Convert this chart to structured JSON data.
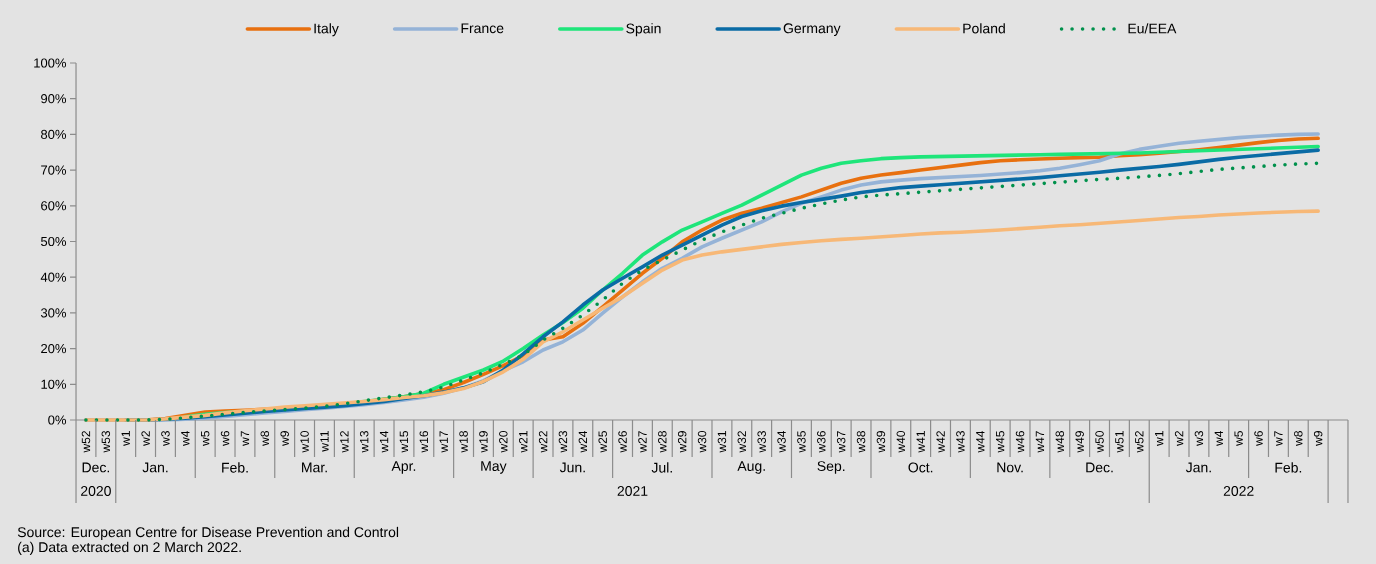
{
  "chart_data": {
    "type": "line",
    "categories": [
      "w52",
      "w53",
      "w1",
      "w2",
      "w3",
      "w4",
      "w5",
      "w6",
      "w7",
      "w8",
      "w9",
      "w10",
      "w11",
      "w12",
      "w13",
      "w14",
      "w15",
      "w16",
      "w17",
      "w18",
      "w19",
      "w20",
      "w21",
      "w22",
      "w23",
      "w24",
      "w25",
      "w26",
      "w27",
      "w28",
      "w29",
      "w30",
      "w31",
      "w32",
      "w33",
      "w34",
      "w35",
      "w36",
      "w37",
      "w38",
      "w39",
      "w40",
      "w41",
      "w42",
      "w43",
      "w44",
      "w45",
      "w46",
      "w47",
      "w48",
      "w49",
      "w50",
      "w51",
      "w52",
      "w1",
      "w2",
      "w3",
      "w4",
      "w5",
      "w6",
      "w7",
      "w8",
      "w9"
    ],
    "series": [
      {
        "name": "Italy",
        "color": "#e8700f",
        "values": [
          0,
          0,
          0,
          0,
          0.4,
          1.3,
          2.2,
          2.5,
          2.7,
          3.0,
          3.3,
          3.6,
          4.0,
          4.4,
          5.0,
          5.8,
          6.5,
          7.4,
          8.5,
          10.5,
          12.8,
          15.2,
          18.0,
          22.4,
          23.3,
          27.1,
          31.7,
          36.4,
          41.1,
          45.3,
          49.9,
          53.2,
          56.0,
          57.9,
          59.3,
          60.9,
          62.5,
          64.4,
          66.3,
          67.7,
          68.6,
          69.3,
          70.0,
          70.7,
          71.4,
          72.1,
          72.6,
          72.9,
          73.1,
          73.3,
          73.5,
          73.6,
          74.0,
          74.3,
          74.7,
          75.2,
          75.7,
          76.3,
          77.0,
          77.7,
          78.3,
          78.7,
          78.9
        ]
      },
      {
        "name": "France",
        "color": "#95b3d7",
        "values": [
          0,
          0,
          0,
          0,
          0,
          0.2,
          0.5,
          1.0,
          1.5,
          2.0,
          2.4,
          2.9,
          3.3,
          3.8,
          4.3,
          4.9,
          5.6,
          6.4,
          7.5,
          9.0,
          11.0,
          13.8,
          16.3,
          19.6,
          21.9,
          25.2,
          29.9,
          34.5,
          38.7,
          42.5,
          45.3,
          48.5,
          50.9,
          53.2,
          55.5,
          58.3,
          60.7,
          62.5,
          64.4,
          65.8,
          66.7,
          67.2,
          67.6,
          67.9,
          68.2,
          68.5,
          68.9,
          69.3,
          69.8,
          70.5,
          71.5,
          72.6,
          74.5,
          75.8,
          76.7,
          77.5,
          78.1,
          78.6,
          79.1,
          79.5,
          79.8,
          80.0,
          80.1
        ]
      },
      {
        "name": "Spain",
        "color": "#1ee57a",
        "values": [
          null,
          null,
          null,
          null,
          null,
          0.9,
          1.6,
          2.1,
          2.4,
          2.7,
          3.0,
          3.4,
          3.9,
          4.5,
          5.2,
          5.8,
          6.5,
          7.5,
          10.0,
          12.0,
          14.0,
          16.5,
          20.0,
          23.8,
          27.3,
          31.3,
          36.4,
          41.1,
          46.2,
          49.9,
          53.2,
          55.5,
          57.9,
          60.2,
          63.0,
          65.8,
          68.6,
          70.5,
          71.9,
          72.6,
          73.2,
          73.5,
          73.7,
          73.8,
          73.9,
          74.0,
          74.1,
          74.2,
          74.3,
          74.4,
          74.5,
          74.6,
          74.7,
          74.8,
          75.0,
          75.2,
          75.4,
          75.6,
          75.8,
          76.0,
          76.2,
          76.4,
          76.6
        ]
      },
      {
        "name": "Germany",
        "color": "#0a6ba5",
        "values": [
          null,
          null,
          0,
          0,
          0.2,
          0.5,
          0.9,
          1.4,
          1.9,
          2.4,
          2.8,
          3.2,
          3.6,
          4.0,
          4.6,
          5.2,
          6.0,
          6.8,
          7.8,
          9.0,
          10.7,
          14.0,
          18.5,
          23.3,
          27.5,
          32.2,
          36.4,
          39.7,
          42.9,
          46.2,
          49.0,
          51.8,
          54.6,
          57.0,
          58.6,
          59.9,
          60.9,
          61.8,
          62.7,
          63.7,
          64.4,
          65.1,
          65.5,
          65.9,
          66.3,
          66.7,
          67.1,
          67.5,
          67.9,
          68.4,
          68.9,
          69.4,
          70.0,
          70.5,
          71.0,
          71.6,
          72.3,
          73.0,
          73.6,
          74.1,
          74.6,
          75.1,
          75.6
        ]
      },
      {
        "name": "Poland",
        "color": "#f7b877",
        "values": [
          0,
          0,
          0,
          0,
          0.3,
          0.8,
          1.3,
          2.0,
          2.6,
          3.1,
          3.6,
          4.0,
          4.4,
          4.8,
          5.2,
          5.7,
          6.3,
          6.8,
          7.6,
          8.8,
          10.8,
          13.5,
          17.0,
          21.9,
          24.7,
          28.0,
          31.3,
          34.5,
          38.3,
          42.0,
          44.8,
          46.2,
          47.1,
          47.8,
          48.5,
          49.2,
          49.7,
          50.2,
          50.6,
          50.9,
          51.3,
          51.7,
          52.1,
          52.4,
          52.6,
          52.9,
          53.2,
          53.6,
          54.0,
          54.4,
          54.7,
          55.1,
          55.5,
          55.9,
          56.3,
          56.7,
          57.0,
          57.4,
          57.7,
          58.0,
          58.2,
          58.4,
          58.5
        ]
      },
      {
        "name": "Eu/EEA",
        "color": "#00914c",
        "line_style": "dotted",
        "values": [
          0,
          0,
          0,
          0,
          0.2,
          0.6,
          1.1,
          1.6,
          2.1,
          2.5,
          2.9,
          3.3,
          3.8,
          4.5,
          5.4,
          6.2,
          7.0,
          7.9,
          9.2,
          11.2,
          13.2,
          15.6,
          18.2,
          22.4,
          25.7,
          29.4,
          33.6,
          38.3,
          42.0,
          44.8,
          47.6,
          50.4,
          52.7,
          54.6,
          56.5,
          57.9,
          59.3,
          60.5,
          61.6,
          62.5,
          63.0,
          63.4,
          63.8,
          64.2,
          64.6,
          65.0,
          65.4,
          65.8,
          66.2,
          66.6,
          67.0,
          67.4,
          67.7,
          68.1,
          68.5,
          69.0,
          69.6,
          70.2,
          70.6,
          71.0,
          71.4,
          71.7,
          71.9
        ]
      }
    ],
    "ylim": [
      0,
      100
    ],
    "yticks": [
      {
        "value": 0,
        "label": "0%"
      },
      {
        "value": 10,
        "label": "10%"
      },
      {
        "value": 20,
        "label": "20%"
      },
      {
        "value": 30,
        "label": "30%"
      },
      {
        "value": 40,
        "label": "40%"
      },
      {
        "value": 50,
        "label": "50%"
      },
      {
        "value": 60,
        "label": "60%"
      },
      {
        "value": 70,
        "label": "70%"
      },
      {
        "value": 80,
        "label": "80%"
      },
      {
        "value": 90,
        "label": "90%"
      },
      {
        "value": 100,
        "label": "100%"
      }
    ],
    "legend": "top",
    "line_style": "solid",
    "marker": "none",
    "annotations": [
      "Dec.",
      "Jan.",
      "Feb.",
      "Mar.",
      "Apr.",
      "May",
      "Jun.",
      "Jul.",
      "Aug.",
      "Sep.",
      "Oct.",
      "Nov.",
      "Dec.",
      "Jan.",
      "Feb.",
      "2020",
      "2021",
      "2022",
      "Source: European Centre for Disease Prevention and Control",
      "(a) Data extracted on 2 March 2022."
    ]
  }
}
